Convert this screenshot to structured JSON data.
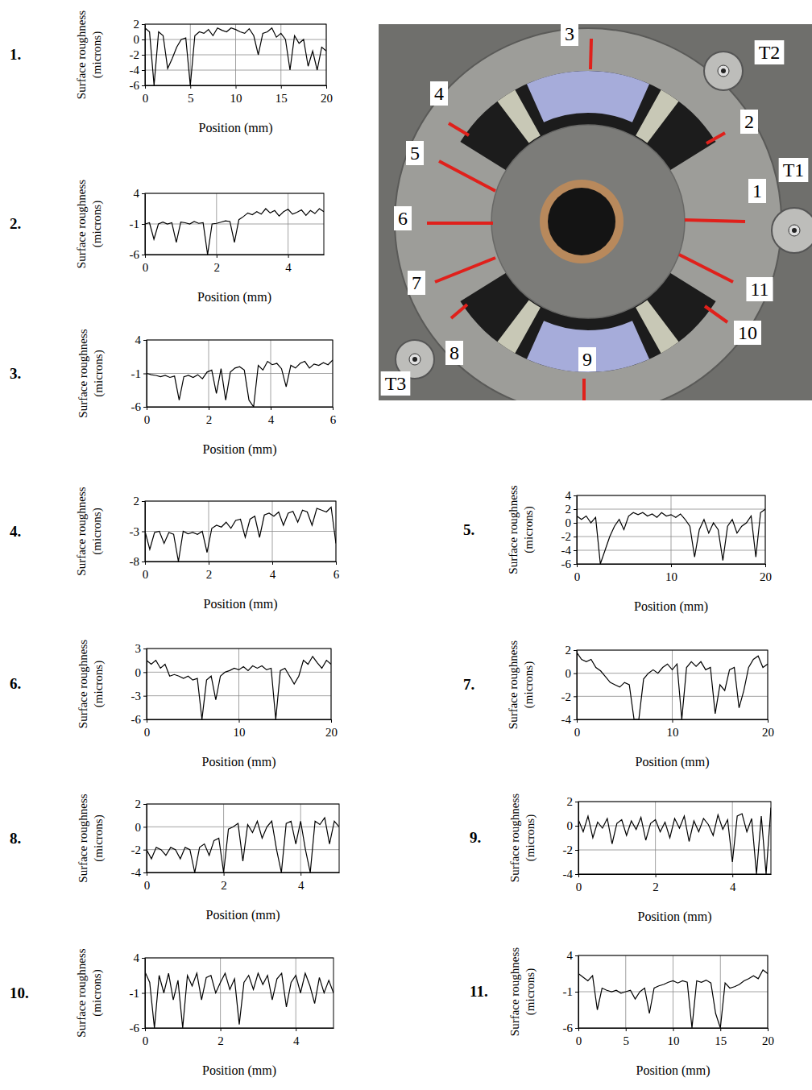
{
  "chart_data": [
    {
      "type": "line",
      "title": "1.",
      "xlabel": "Position (mm)",
      "ylabel": "Surface roughness (microns)",
      "color": "#000000",
      "grid": true,
      "xlim": [
        0,
        20
      ],
      "xticks": [
        0,
        5,
        10,
        15,
        20
      ],
      "ylim": [
        -6,
        2
      ],
      "yticks": [
        -6,
        -4,
        -2,
        0,
        2
      ],
      "x": [
        0,
        0.5,
        1,
        1.5,
        2,
        2.5,
        3,
        3.5,
        4,
        4.5,
        5,
        5.5,
        6,
        6.5,
        7,
        7.5,
        8,
        8.5,
        9,
        9.5,
        10,
        10.5,
        11,
        11.5,
        12,
        12.5,
        13,
        13.5,
        14,
        14.5,
        15,
        15.5,
        16,
        16.5,
        17,
        17.5,
        18,
        18.5,
        19,
        19.5,
        20
      ],
      "values": [
        1.5,
        1.0,
        -6,
        1.0,
        0.5,
        -3.8,
        -2.5,
        -1,
        0,
        0.2,
        -6,
        0.5,
        1,
        0.8,
        1.3,
        0.5,
        1.5,
        1.2,
        1.0,
        1.5,
        1.3,
        1.0,
        0.8,
        1.4,
        0.5,
        -2,
        0.8,
        1.0,
        1.5,
        0.3,
        0.8,
        0,
        -4,
        0.5,
        -0.5,
        0,
        -3.5,
        -1.5,
        -4,
        -1,
        -1.5
      ]
    },
    {
      "type": "line",
      "title": "2.",
      "xlabel": "Position (mm)",
      "ylabel": "Surface roughness (microns)",
      "color": "#000000",
      "grid": true,
      "xlim": [
        0,
        5
      ],
      "xticks": [
        0,
        2,
        4
      ],
      "ylim": [
        -6,
        4
      ],
      "yticks": [
        -6,
        -1,
        4
      ],
      "x": [
        0,
        0.125,
        0.25,
        0.375,
        0.5,
        0.625,
        0.75,
        0.875,
        1,
        1.125,
        1.25,
        1.375,
        1.5,
        1.625,
        1.75,
        1.875,
        2,
        2.125,
        2.25,
        2.375,
        2.5,
        2.625,
        2.75,
        2.875,
        3,
        3.125,
        3.25,
        3.375,
        3.5,
        3.625,
        3.75,
        3.875,
        4,
        4.125,
        4.25,
        4.375,
        4.5,
        4.625,
        4.75,
        4.875,
        5
      ],
      "values": [
        -1,
        -0.8,
        -3.5,
        -1,
        -0.7,
        -1,
        -0.8,
        -4,
        -0.7,
        -0.8,
        -1,
        -0.6,
        -0.9,
        -0.8,
        -6,
        -1,
        -0.9,
        -0.7,
        -0.5,
        -0.6,
        -4,
        -0.3,
        0.2,
        0.8,
        0.5,
        1.0,
        0.6,
        1.5,
        0.8,
        1.2,
        0.3,
        1.0,
        1.4,
        0.6,
        0.9,
        1.3,
        0.4,
        1.2,
        0.7,
        1.5,
        1.0
      ]
    },
    {
      "type": "line",
      "title": "3.",
      "xlabel": "Position (mm)",
      "ylabel": "Surface roughness (microns)",
      "color": "#000000",
      "grid": true,
      "xlim": [
        0,
        6
      ],
      "xticks": [
        0,
        2,
        4,
        6
      ],
      "ylim": [
        -6,
        4
      ],
      "yticks": [
        -6,
        -1,
        4
      ],
      "x": [
        0,
        0.15,
        0.3,
        0.45,
        0.6,
        0.75,
        0.9,
        1.05,
        1.2,
        1.35,
        1.5,
        1.65,
        1.8,
        1.95,
        2.1,
        2.25,
        2.4,
        2.55,
        2.7,
        2.85,
        3,
        3.15,
        3.3,
        3.45,
        3.6,
        3.75,
        3.9,
        4.05,
        4.2,
        4.35,
        4.5,
        4.65,
        4.8,
        4.95,
        5.1,
        5.25,
        5.4,
        5.55,
        5.7,
        5.85,
        6
      ],
      "values": [
        -1,
        -1.2,
        -1.3,
        -1.5,
        -1.3,
        -1.6,
        -1.4,
        -5,
        -1.5,
        -1.3,
        -1.6,
        -1.2,
        -1.8,
        -0.8,
        -0.5,
        -4,
        -0.3,
        -5,
        -0.8,
        -0.2,
        0,
        -0.5,
        -5,
        -6,
        0.2,
        -0.5,
        0.8,
        0.3,
        0.5,
        -0.3,
        -3,
        0.2,
        -0.2,
        0.5,
        0.8,
        -0.2,
        0.4,
        0.2,
        0.6,
        0.3,
        1.0
      ]
    },
    {
      "type": "line",
      "title": "4.",
      "xlabel": "Position (mm)",
      "ylabel": "Surface roughness (microns)",
      "color": "#000000",
      "grid": true,
      "xlim": [
        0,
        6
      ],
      "xticks": [
        0,
        2,
        4,
        6
      ],
      "ylim": [
        -8,
        2
      ],
      "yticks": [
        -8,
        -3,
        2
      ],
      "x": [
        0,
        0.15,
        0.3,
        0.45,
        0.6,
        0.75,
        0.9,
        1.05,
        1.2,
        1.35,
        1.5,
        1.65,
        1.8,
        1.95,
        2.1,
        2.25,
        2.4,
        2.55,
        2.7,
        2.85,
        3,
        3.15,
        3.3,
        3.45,
        3.6,
        3.75,
        3.9,
        4.05,
        4.2,
        4.35,
        4.5,
        4.65,
        4.8,
        4.95,
        5.1,
        5.25,
        5.4,
        5.55,
        5.7,
        5.85,
        6
      ],
      "values": [
        -3,
        -6,
        -3.2,
        -3,
        -5,
        -3.2,
        -3.5,
        -8,
        -3,
        -3.4,
        -3.2,
        -3.5,
        -3,
        -6.5,
        -2.5,
        -2,
        -2.3,
        -1.5,
        -2.5,
        -1.2,
        -1,
        -4,
        -1,
        -0.5,
        -4,
        -0.3,
        0,
        -0.5,
        0.2,
        -2,
        0,
        0.3,
        -1.5,
        0.5,
        0.2,
        -2,
        0.8,
        0.5,
        0.2,
        1,
        -5
      ]
    },
    {
      "type": "line",
      "title": "5.",
      "xlabel": "Position (mm)",
      "ylabel": "Surface roughness (microns)",
      "color": "#000000",
      "grid": true,
      "xlim": [
        0,
        20
      ],
      "xticks": [
        0,
        10,
        20
      ],
      "ylim": [
        -6,
        4
      ],
      "yticks": [
        -6,
        -4,
        -2,
        0,
        2,
        4
      ],
      "x": [
        0,
        0.5,
        1,
        1.5,
        2,
        2.5,
        3,
        3.5,
        4,
        4.5,
        5,
        5.5,
        6,
        6.5,
        7,
        7.5,
        8,
        8.5,
        9,
        9.5,
        10,
        10.5,
        11,
        11.5,
        12,
        12.5,
        13,
        13.5,
        14,
        14.5,
        15,
        15.5,
        16,
        16.5,
        17,
        17.5,
        18,
        18.5,
        19,
        19.5,
        20
      ],
      "values": [
        1,
        0.5,
        1,
        0,
        0.8,
        -6,
        -4,
        -2,
        -0.5,
        0.5,
        -1,
        1,
        1.5,
        1.2,
        1.5,
        1.0,
        1.3,
        0.8,
        1.5,
        1.0,
        1.2,
        0.8,
        1.3,
        0.5,
        -0.5,
        -5,
        -1,
        0.5,
        -1.5,
        0,
        -1,
        -5.5,
        -0.5,
        0.5,
        -1.5,
        -0.5,
        0,
        1,
        -5,
        1.5,
        2
      ]
    },
    {
      "type": "line",
      "title": "6.",
      "xlabel": "Position (mm)",
      "ylabel": "Surface roughness (microns)",
      "color": "#000000",
      "grid": true,
      "xlim": [
        0,
        20
      ],
      "xticks": [
        0,
        10,
        20
      ],
      "ylim": [
        -6,
        3
      ],
      "yticks": [
        -6,
        -3,
        0,
        3
      ],
      "x": [
        0,
        0.5,
        1,
        1.5,
        2,
        2.5,
        3,
        3.5,
        4,
        4.5,
        5,
        5.5,
        6,
        6.5,
        7,
        7.5,
        8,
        8.5,
        9,
        9.5,
        10,
        10.5,
        11,
        11.5,
        12,
        12.5,
        13,
        13.5,
        14,
        14.5,
        15,
        15.5,
        16,
        16.5,
        17,
        17.5,
        18,
        18.5,
        19,
        19.5,
        20
      ],
      "values": [
        1.5,
        1.0,
        1.5,
        0.5,
        1.0,
        -0.5,
        -0.3,
        -0.5,
        -0.8,
        -0.5,
        -1,
        -0.8,
        -6,
        -1,
        -0.5,
        -3.5,
        -0.5,
        0,
        0.2,
        0.5,
        0.3,
        0.7,
        0.2,
        0.8,
        0.5,
        0.8,
        0.3,
        0.5,
        -6,
        0.2,
        0.5,
        -0.5,
        -1.5,
        -0.5,
        1.5,
        1.0,
        2.0,
        1.2,
        0.5,
        1.5,
        1.0
      ]
    },
    {
      "type": "line",
      "title": "7.",
      "xlabel": "Position (mm)",
      "ylabel": "Surface roughness (microns)",
      "color": "#000000",
      "grid": true,
      "xlim": [
        0,
        20
      ],
      "xticks": [
        0,
        10,
        20
      ],
      "ylim": [
        -4,
        2
      ],
      "yticks": [
        -4,
        -2,
        0,
        2
      ],
      "x": [
        0,
        0.5,
        1,
        1.5,
        2,
        2.5,
        3,
        3.5,
        4,
        4.5,
        5,
        5.5,
        6,
        6.5,
        7,
        7.5,
        8,
        8.5,
        9,
        9.5,
        10,
        10.5,
        11,
        11.5,
        12,
        12.5,
        13,
        13.5,
        14,
        14.5,
        15,
        15.5,
        16,
        16.5,
        17,
        17.5,
        18,
        18.5,
        19,
        19.5,
        20
      ],
      "values": [
        1.8,
        1.2,
        1.0,
        1.2,
        0.5,
        0.2,
        -0.3,
        -0.8,
        -1.0,
        -1.2,
        -0.8,
        -1.0,
        -4,
        -4,
        -0.5,
        0,
        0.3,
        0,
        0.5,
        0.8,
        0.3,
        0.8,
        -4,
        0.5,
        1.0,
        0.6,
        1.0,
        0.3,
        0.5,
        -3.5,
        -1,
        -1.5,
        0.3,
        0.5,
        -3,
        -1.5,
        0.5,
        1.2,
        1.5,
        0.5,
        0.8
      ]
    },
    {
      "type": "line",
      "title": "8.",
      "xlabel": "Position (mm)",
      "ylabel": "Surface roughness (microns)",
      "color": "#000000",
      "grid": true,
      "xlim": [
        0,
        5
      ],
      "xticks": [
        0,
        2,
        4
      ],
      "ylim": [
        -4,
        2
      ],
      "yticks": [
        -4,
        -2,
        0,
        2
      ],
      "x": [
        0,
        0.125,
        0.25,
        0.375,
        0.5,
        0.625,
        0.75,
        0.875,
        1,
        1.125,
        1.25,
        1.375,
        1.5,
        1.625,
        1.75,
        1.875,
        2,
        2.125,
        2.25,
        2.375,
        2.5,
        2.625,
        2.75,
        2.875,
        3,
        3.125,
        3.25,
        3.375,
        3.5,
        3.625,
        3.75,
        3.875,
        4,
        4.125,
        4.25,
        4.375,
        4.5,
        4.625,
        4.75,
        4.875,
        5
      ],
      "values": [
        -2,
        -2.8,
        -1.8,
        -2,
        -2.5,
        -1.8,
        -2,
        -2.8,
        -1.8,
        -2,
        -4,
        -1.8,
        -1.5,
        -2.5,
        -1.2,
        -1,
        -4,
        -0.2,
        0,
        0.3,
        -3,
        0.2,
        -0.5,
        0.5,
        -1,
        0,
        0.5,
        -2,
        -4,
        0.3,
        0.5,
        -1.5,
        0.5,
        -2,
        -4,
        0.5,
        0.2,
        0.8,
        -1.5,
        0.5,
        0
      ]
    },
    {
      "type": "line",
      "title": "9.",
      "xlabel": "Position (mm)",
      "ylabel": "Surface roughness (microns)",
      "color": "#000000",
      "grid": true,
      "xlim": [
        0,
        5
      ],
      "xticks": [
        0,
        2,
        4
      ],
      "ylim": [
        -4,
        2
      ],
      "yticks": [
        -4,
        -2,
        0,
        2
      ],
      "x": [
        0,
        0.125,
        0.25,
        0.375,
        0.5,
        0.625,
        0.75,
        0.875,
        1,
        1.125,
        1.25,
        1.375,
        1.5,
        1.625,
        1.75,
        1.875,
        2,
        2.125,
        2.25,
        2.375,
        2.5,
        2.625,
        2.75,
        2.875,
        3,
        3.125,
        3.25,
        3.375,
        3.5,
        3.625,
        3.75,
        3.875,
        4,
        4.125,
        4.25,
        4.375,
        4.5,
        4.625,
        4.75,
        4.875,
        5
      ],
      "values": [
        0.5,
        -0.5,
        0.8,
        -1,
        0.3,
        -0.2,
        0.6,
        -1.5,
        0.2,
        0.5,
        -0.8,
        0.4,
        -0.3,
        0.7,
        -1.2,
        0.2,
        0.5,
        -0.5,
        0.3,
        -1,
        0.6,
        -0.2,
        0.8,
        -1.3,
        0.4,
        -0.5,
        0.6,
        0.1,
        -0.8,
        0.9,
        -0.3,
        0.5,
        -3,
        0.8,
        1.0,
        -0.5,
        0.6,
        -4,
        0.8,
        -4,
        1.5
      ]
    },
    {
      "type": "line",
      "title": "10.",
      "xlabel": "Position (mm)",
      "ylabel": "Surface roughness (microns)",
      "color": "#000000",
      "grid": true,
      "xlim": [
        0,
        5
      ],
      "xticks": [
        0,
        2,
        4
      ],
      "ylim": [
        -6,
        4
      ],
      "yticks": [
        -6,
        -1,
        4
      ],
      "x": [
        0,
        0.125,
        0.25,
        0.375,
        0.5,
        0.625,
        0.75,
        0.875,
        1,
        1.125,
        1.25,
        1.375,
        1.5,
        1.625,
        1.75,
        1.875,
        2,
        2.125,
        2.25,
        2.375,
        2.5,
        2.625,
        2.75,
        2.875,
        3,
        3.125,
        3.25,
        3.375,
        3.5,
        3.625,
        3.75,
        3.875,
        4,
        4.125,
        4.25,
        4.375,
        4.5,
        4.625,
        4.75,
        4.875,
        5
      ],
      "values": [
        2,
        0.5,
        -6,
        1.5,
        -1,
        1.8,
        -2,
        0.8,
        -6,
        1.5,
        0,
        1.8,
        -2,
        1.2,
        1.5,
        -1,
        0.5,
        1.8,
        -0.5,
        1.0,
        -5.5,
        0.5,
        1.5,
        -0.5,
        1.8,
        0.2,
        1.5,
        -2,
        1.0,
        1.8,
        -3,
        0.5,
        1.5,
        -1,
        1.8,
        0,
        -2.5,
        1.2,
        -1,
        0.8,
        -1
      ]
    },
    {
      "type": "line",
      "title": "11.",
      "xlabel": "Position (mm)",
      "ylabel": "Surface roughness (microns)",
      "color": "#000000",
      "grid": true,
      "xlim": [
        0,
        20
      ],
      "xticks": [
        0,
        5,
        10,
        15,
        20
      ],
      "ylim": [
        -6,
        4
      ],
      "yticks": [
        -6,
        -1,
        4
      ],
      "x": [
        0,
        0.5,
        1,
        1.5,
        2,
        2.5,
        3,
        3.5,
        4,
        4.5,
        5,
        5.5,
        6,
        6.5,
        7,
        7.5,
        8,
        8.5,
        9,
        9.5,
        10,
        10.5,
        11,
        11.5,
        12,
        12.5,
        13,
        13.5,
        14,
        14.5,
        15,
        15.5,
        16,
        16.5,
        17,
        17.5,
        18,
        18.5,
        19,
        19.5,
        20
      ],
      "values": [
        1.5,
        1.0,
        0.5,
        1.2,
        -3.5,
        -0.5,
        -0.8,
        -1.0,
        -0.8,
        -1.2,
        -1.0,
        -0.8,
        -2,
        -1,
        -0.5,
        -4,
        -0.5,
        -0.2,
        0,
        0.3,
        0.5,
        0.2,
        0.5,
        0.3,
        -6,
        0.5,
        0.3,
        0.6,
        0.2,
        -4,
        -6,
        0.2,
        -0.5,
        -0.3,
        0,
        0.5,
        0.8,
        1.2,
        0.8,
        2.0,
        1.5
      ]
    }
  ],
  "photo": {
    "labels": [
      "1",
      "2",
      "3",
      "4",
      "5",
      "6",
      "7",
      "8",
      "9",
      "10",
      "11"
    ],
    "bolts": [
      "T1",
      "T2",
      "T3"
    ]
  }
}
